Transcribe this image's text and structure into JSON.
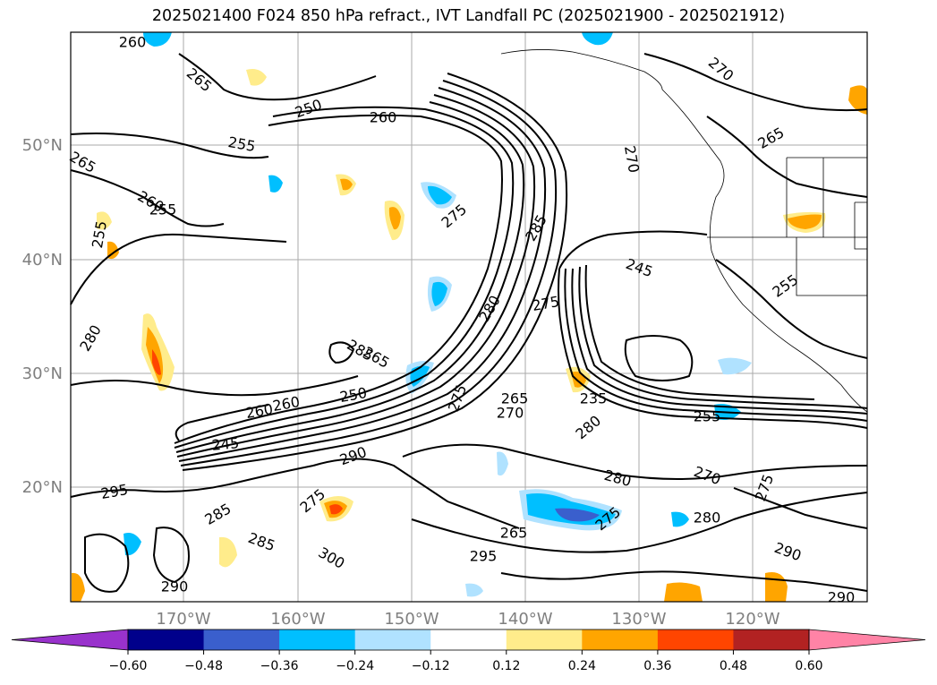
{
  "title": "2025021400 F024 850 hPa refract., IVT Landfall PC (2025021900 - 2025021912)",
  "lat_labels": [
    "50°N",
    "40°N",
    "30°N",
    "20°N"
  ],
  "lon_labels": [
    "170°W",
    "160°W",
    "150°W",
    "140°W",
    "130°W",
    "120°W"
  ],
  "contour_labels": [
    "260",
    "265",
    "270",
    "250",
    "260",
    "255",
    "265",
    "260",
    "270",
    "255",
    "255",
    "275",
    "285",
    "265",
    "245",
    "255",
    "280",
    "285",
    "280",
    "275",
    "265",
    "260",
    "250",
    "245",
    "265",
    "260",
    "275",
    "270",
    "290",
    "235",
    "255",
    "280",
    "295",
    "280",
    "270",
    "285",
    "275",
    "265",
    "285",
    "300",
    "275",
    "295",
    "275",
    "280",
    "290",
    "290",
    "290"
  ],
  "colorbar": {
    "colors": [
      "#9932cc",
      "#00008b",
      "#3a5fcd",
      "#00bfff",
      "#b0e2ff",
      "#ffffff",
      "#ffec8b",
      "#ffa500",
      "#ff4500",
      "#b22222",
      "#ff83a6"
    ],
    "ticks": [
      "−0.60",
      "−0.48",
      "−0.36",
      "−0.24",
      "−0.12",
      "0.12",
      "0.24",
      "0.36",
      "0.48",
      "0.60"
    ]
  },
  "colors": {
    "contour": "#000000",
    "grid": "#aaaaaa",
    "axis_labels": "#7f7f7f",
    "positive_shading": "#ffa500",
    "negative_shading": "#00bfff"
  }
}
